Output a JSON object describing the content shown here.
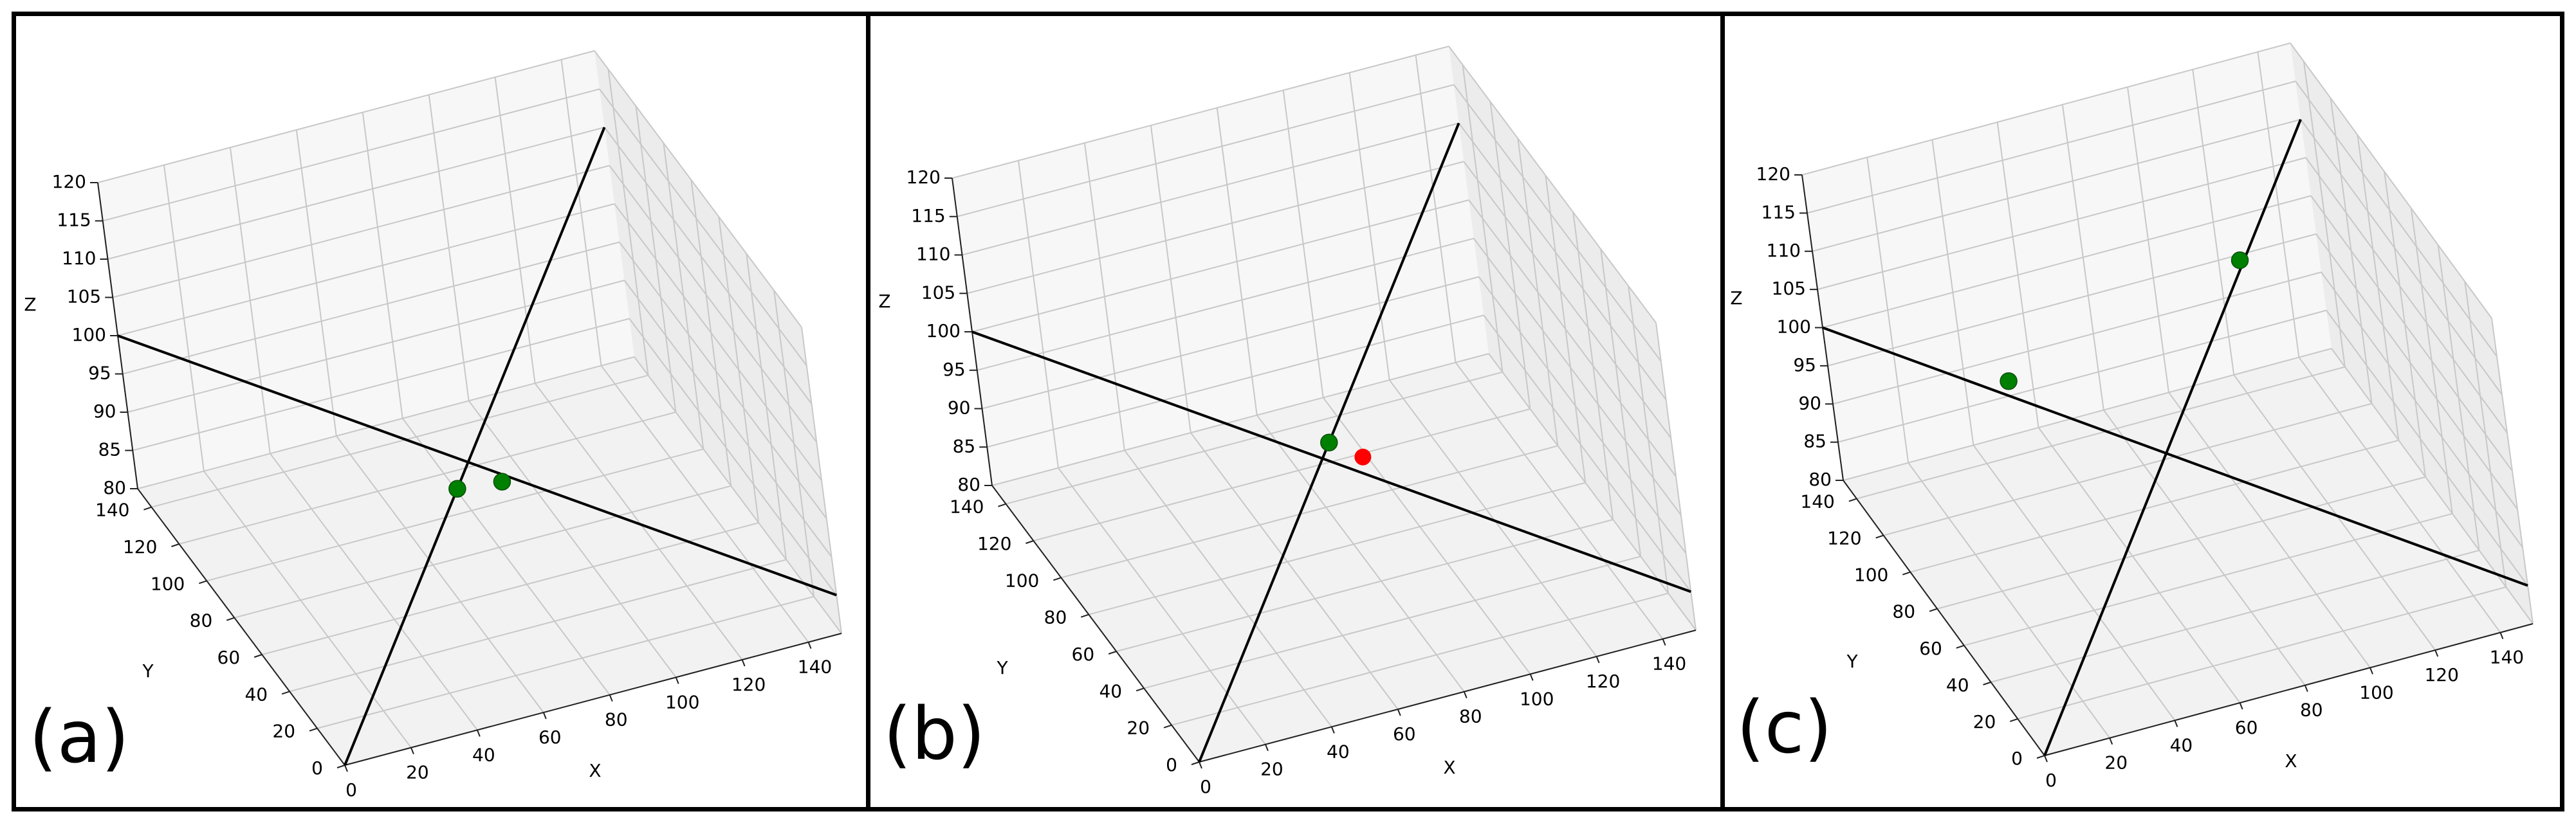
{
  "chart_data": [
    {
      "type": "line3d",
      "panel_label": "(a)",
      "xlabel": "X",
      "ylabel": "Y",
      "zlabel": "Z",
      "xlim": [
        0,
        150
      ],
      "ylim": [
        0,
        150
      ],
      "zlim": [
        80,
        120
      ],
      "x_ticks": [
        "0",
        "20",
        "40",
        "60",
        "80",
        "100",
        "120",
        "140"
      ],
      "y_ticks": [
        "0",
        "20",
        "40",
        "60",
        "80",
        "100",
        "120",
        "140"
      ],
      "z_ticks": [
        "80",
        "85",
        "90",
        "95",
        "100",
        "105",
        "110",
        "115",
        "120"
      ],
      "lines": [
        {
          "color": "#000000",
          "points": [
            [
              0,
              150,
              100
            ],
            [
              150,
              0,
              85
            ]
          ]
        },
        {
          "color": "#000000",
          "points": [
            [
              0,
              0,
              80
            ],
            [
              150,
              150,
              110
            ]
          ]
        }
      ],
      "points": [
        {
          "color": "#008000",
          "xyz": [
            65,
            65,
            93
          ]
        },
        {
          "color": "#008000",
          "xyz": [
            80,
            70,
            91
          ]
        }
      ]
    },
    {
      "type": "line3d",
      "panel_label": "(b)",
      "xlabel": "X",
      "ylabel": "Y",
      "zlabel": "Z",
      "xlim": [
        0,
        150
      ],
      "ylim": [
        0,
        150
      ],
      "zlim": [
        80,
        120
      ],
      "x_ticks": [
        "0",
        "20",
        "40",
        "60",
        "80",
        "100",
        "120",
        "140"
      ],
      "y_ticks": [
        "0",
        "20",
        "40",
        "60",
        "80",
        "100",
        "120",
        "140"
      ],
      "z_ticks": [
        "80",
        "85",
        "90",
        "95",
        "100",
        "105",
        "110",
        "115",
        "120"
      ],
      "lines": [
        {
          "color": "#000000",
          "points": [
            [
              0,
              150,
              100
            ],
            [
              150,
              0,
              85
            ]
          ]
        },
        {
          "color": "#000000",
          "points": [
            [
              0,
              0,
              80
            ],
            [
              150,
              150,
              110
            ]
          ]
        }
      ],
      "points": [
        {
          "color": "#008000",
          "xyz": [
            75,
            75,
            95
          ]
        },
        {
          "color": "#ff0000",
          "xyz": [
            82,
            68,
            94
          ]
        }
      ]
    },
    {
      "type": "line3d",
      "panel_label": "(c)",
      "xlabel": "X",
      "ylabel": "Y",
      "zlabel": "Z",
      "xlim": [
        0,
        150
      ],
      "ylim": [
        0,
        150
      ],
      "zlim": [
        80,
        120
      ],
      "x_ticks": [
        "0",
        "20",
        "40",
        "60",
        "80",
        "100",
        "120",
        "140"
      ],
      "y_ticks": [
        "0",
        "20",
        "40",
        "60",
        "80",
        "100",
        "120",
        "140"
      ],
      "z_ticks": [
        "80",
        "85",
        "90",
        "95",
        "100",
        "105",
        "110",
        "115",
        "120"
      ],
      "lines": [
        {
          "color": "#000000",
          "points": [
            [
              0,
              150,
              100
            ],
            [
              150,
              0,
              85
            ]
          ]
        },
        {
          "color": "#000000",
          "points": [
            [
              0,
              0,
              80
            ],
            [
              150,
              150,
              110
            ]
          ]
        }
      ],
      "points": [
        {
          "color": "#008000",
          "xyz": [
            40,
            110,
            98
          ]
        },
        {
          "color": "#008000",
          "xyz": [
            115,
            115,
            104
          ]
        }
      ]
    }
  ]
}
